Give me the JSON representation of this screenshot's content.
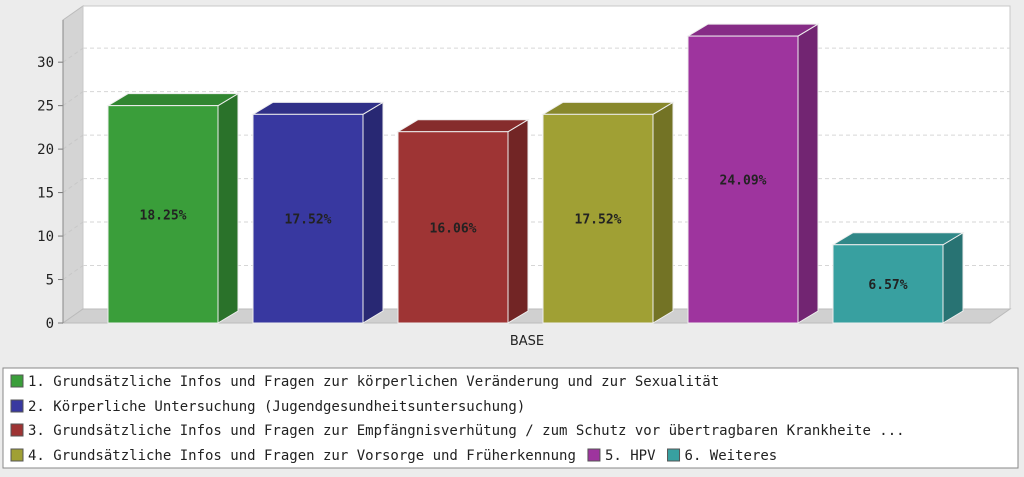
{
  "chart_data": {
    "type": "bar",
    "style": "3d",
    "categories": [
      "BASE"
    ],
    "ylim": [
      0,
      36
    ],
    "yticks": [
      0,
      5,
      10,
      15,
      20,
      25,
      30
    ],
    "grid": true,
    "legend_placement": "bottom",
    "series": [
      {
        "name": "1. Grundsätzliche Infos und Fragen zur körperlichen Veränderung und zur Sexualität",
        "value": 25,
        "label": "18.25%",
        "color": "#3a9e3a"
      },
      {
        "name": "2. Körperliche Untersuchung (Jugendgesundheitsuntersuchung)",
        "value": 24,
        "label": "17.52%",
        "color": "#3838a0"
      },
      {
        "name": "3. Grundsätzliche Infos und Fragen zur Empfängnisverhütung / zum Schutz vor übertragbaren Krankheite ...",
        "value": 22,
        "label": "16.06%",
        "color": "#9e3434"
      },
      {
        "name": "4. Grundsätzliche Infos und Fragen zur Vorsorge und Früherkennung",
        "value": 24,
        "label": "17.52%",
        "color": "#a0a034"
      },
      {
        "name": "5. HPV",
        "value": 33,
        "label": "24.09%",
        "color": "#9e349e"
      },
      {
        "name": "6. Weiteres",
        "value": 9,
        "label": "6.57%",
        "color": "#38a0a0"
      }
    ]
  }
}
